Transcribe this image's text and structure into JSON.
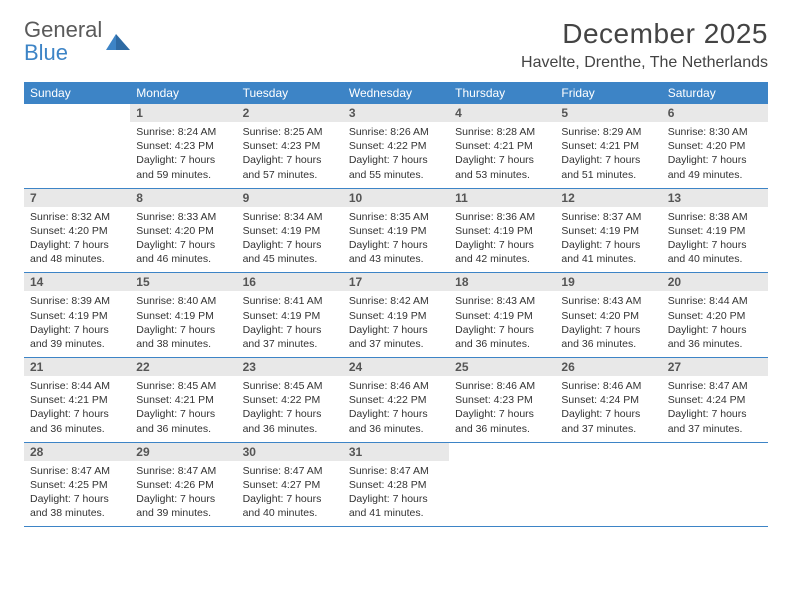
{
  "brand": {
    "name1": "General",
    "name2": "Blue"
  },
  "title": "December 2025",
  "location": "Havelte, Drenthe, The Netherlands",
  "colors": {
    "header_bg": "#3d84c6",
    "header_text": "#ffffff",
    "daynum_bg": "#e8e8e8",
    "rule": "#3d84c6",
    "body_text": "#333333"
  },
  "weekdays": [
    "Sunday",
    "Monday",
    "Tuesday",
    "Wednesday",
    "Thursday",
    "Friday",
    "Saturday"
  ],
  "first_weekday_index": 1,
  "days": [
    {
      "n": 1,
      "sunrise": "8:24 AM",
      "sunset": "4:23 PM",
      "daylight": "7 hours and 59 minutes."
    },
    {
      "n": 2,
      "sunrise": "8:25 AM",
      "sunset": "4:23 PM",
      "daylight": "7 hours and 57 minutes."
    },
    {
      "n": 3,
      "sunrise": "8:26 AM",
      "sunset": "4:22 PM",
      "daylight": "7 hours and 55 minutes."
    },
    {
      "n": 4,
      "sunrise": "8:28 AM",
      "sunset": "4:21 PM",
      "daylight": "7 hours and 53 minutes."
    },
    {
      "n": 5,
      "sunrise": "8:29 AM",
      "sunset": "4:21 PM",
      "daylight": "7 hours and 51 minutes."
    },
    {
      "n": 6,
      "sunrise": "8:30 AM",
      "sunset": "4:20 PM",
      "daylight": "7 hours and 49 minutes."
    },
    {
      "n": 7,
      "sunrise": "8:32 AM",
      "sunset": "4:20 PM",
      "daylight": "7 hours and 48 minutes."
    },
    {
      "n": 8,
      "sunrise": "8:33 AM",
      "sunset": "4:20 PM",
      "daylight": "7 hours and 46 minutes."
    },
    {
      "n": 9,
      "sunrise": "8:34 AM",
      "sunset": "4:19 PM",
      "daylight": "7 hours and 45 minutes."
    },
    {
      "n": 10,
      "sunrise": "8:35 AM",
      "sunset": "4:19 PM",
      "daylight": "7 hours and 43 minutes."
    },
    {
      "n": 11,
      "sunrise": "8:36 AM",
      "sunset": "4:19 PM",
      "daylight": "7 hours and 42 minutes."
    },
    {
      "n": 12,
      "sunrise": "8:37 AM",
      "sunset": "4:19 PM",
      "daylight": "7 hours and 41 minutes."
    },
    {
      "n": 13,
      "sunrise": "8:38 AM",
      "sunset": "4:19 PM",
      "daylight": "7 hours and 40 minutes."
    },
    {
      "n": 14,
      "sunrise": "8:39 AM",
      "sunset": "4:19 PM",
      "daylight": "7 hours and 39 minutes."
    },
    {
      "n": 15,
      "sunrise": "8:40 AM",
      "sunset": "4:19 PM",
      "daylight": "7 hours and 38 minutes."
    },
    {
      "n": 16,
      "sunrise": "8:41 AM",
      "sunset": "4:19 PM",
      "daylight": "7 hours and 37 minutes."
    },
    {
      "n": 17,
      "sunrise": "8:42 AM",
      "sunset": "4:19 PM",
      "daylight": "7 hours and 37 minutes."
    },
    {
      "n": 18,
      "sunrise": "8:43 AM",
      "sunset": "4:19 PM",
      "daylight": "7 hours and 36 minutes."
    },
    {
      "n": 19,
      "sunrise": "8:43 AM",
      "sunset": "4:20 PM",
      "daylight": "7 hours and 36 minutes."
    },
    {
      "n": 20,
      "sunrise": "8:44 AM",
      "sunset": "4:20 PM",
      "daylight": "7 hours and 36 minutes."
    },
    {
      "n": 21,
      "sunrise": "8:44 AM",
      "sunset": "4:21 PM",
      "daylight": "7 hours and 36 minutes."
    },
    {
      "n": 22,
      "sunrise": "8:45 AM",
      "sunset": "4:21 PM",
      "daylight": "7 hours and 36 minutes."
    },
    {
      "n": 23,
      "sunrise": "8:45 AM",
      "sunset": "4:22 PM",
      "daylight": "7 hours and 36 minutes."
    },
    {
      "n": 24,
      "sunrise": "8:46 AM",
      "sunset": "4:22 PM",
      "daylight": "7 hours and 36 minutes."
    },
    {
      "n": 25,
      "sunrise": "8:46 AM",
      "sunset": "4:23 PM",
      "daylight": "7 hours and 36 minutes."
    },
    {
      "n": 26,
      "sunrise": "8:46 AM",
      "sunset": "4:24 PM",
      "daylight": "7 hours and 37 minutes."
    },
    {
      "n": 27,
      "sunrise": "8:47 AM",
      "sunset": "4:24 PM",
      "daylight": "7 hours and 37 minutes."
    },
    {
      "n": 28,
      "sunrise": "8:47 AM",
      "sunset": "4:25 PM",
      "daylight": "7 hours and 38 minutes."
    },
    {
      "n": 29,
      "sunrise": "8:47 AM",
      "sunset": "4:26 PM",
      "daylight": "7 hours and 39 minutes."
    },
    {
      "n": 30,
      "sunrise": "8:47 AM",
      "sunset": "4:27 PM",
      "daylight": "7 hours and 40 minutes."
    },
    {
      "n": 31,
      "sunrise": "8:47 AM",
      "sunset": "4:28 PM",
      "daylight": "7 hours and 41 minutes."
    }
  ],
  "labels": {
    "sunrise": "Sunrise:",
    "sunset": "Sunset:",
    "daylight": "Daylight:"
  }
}
